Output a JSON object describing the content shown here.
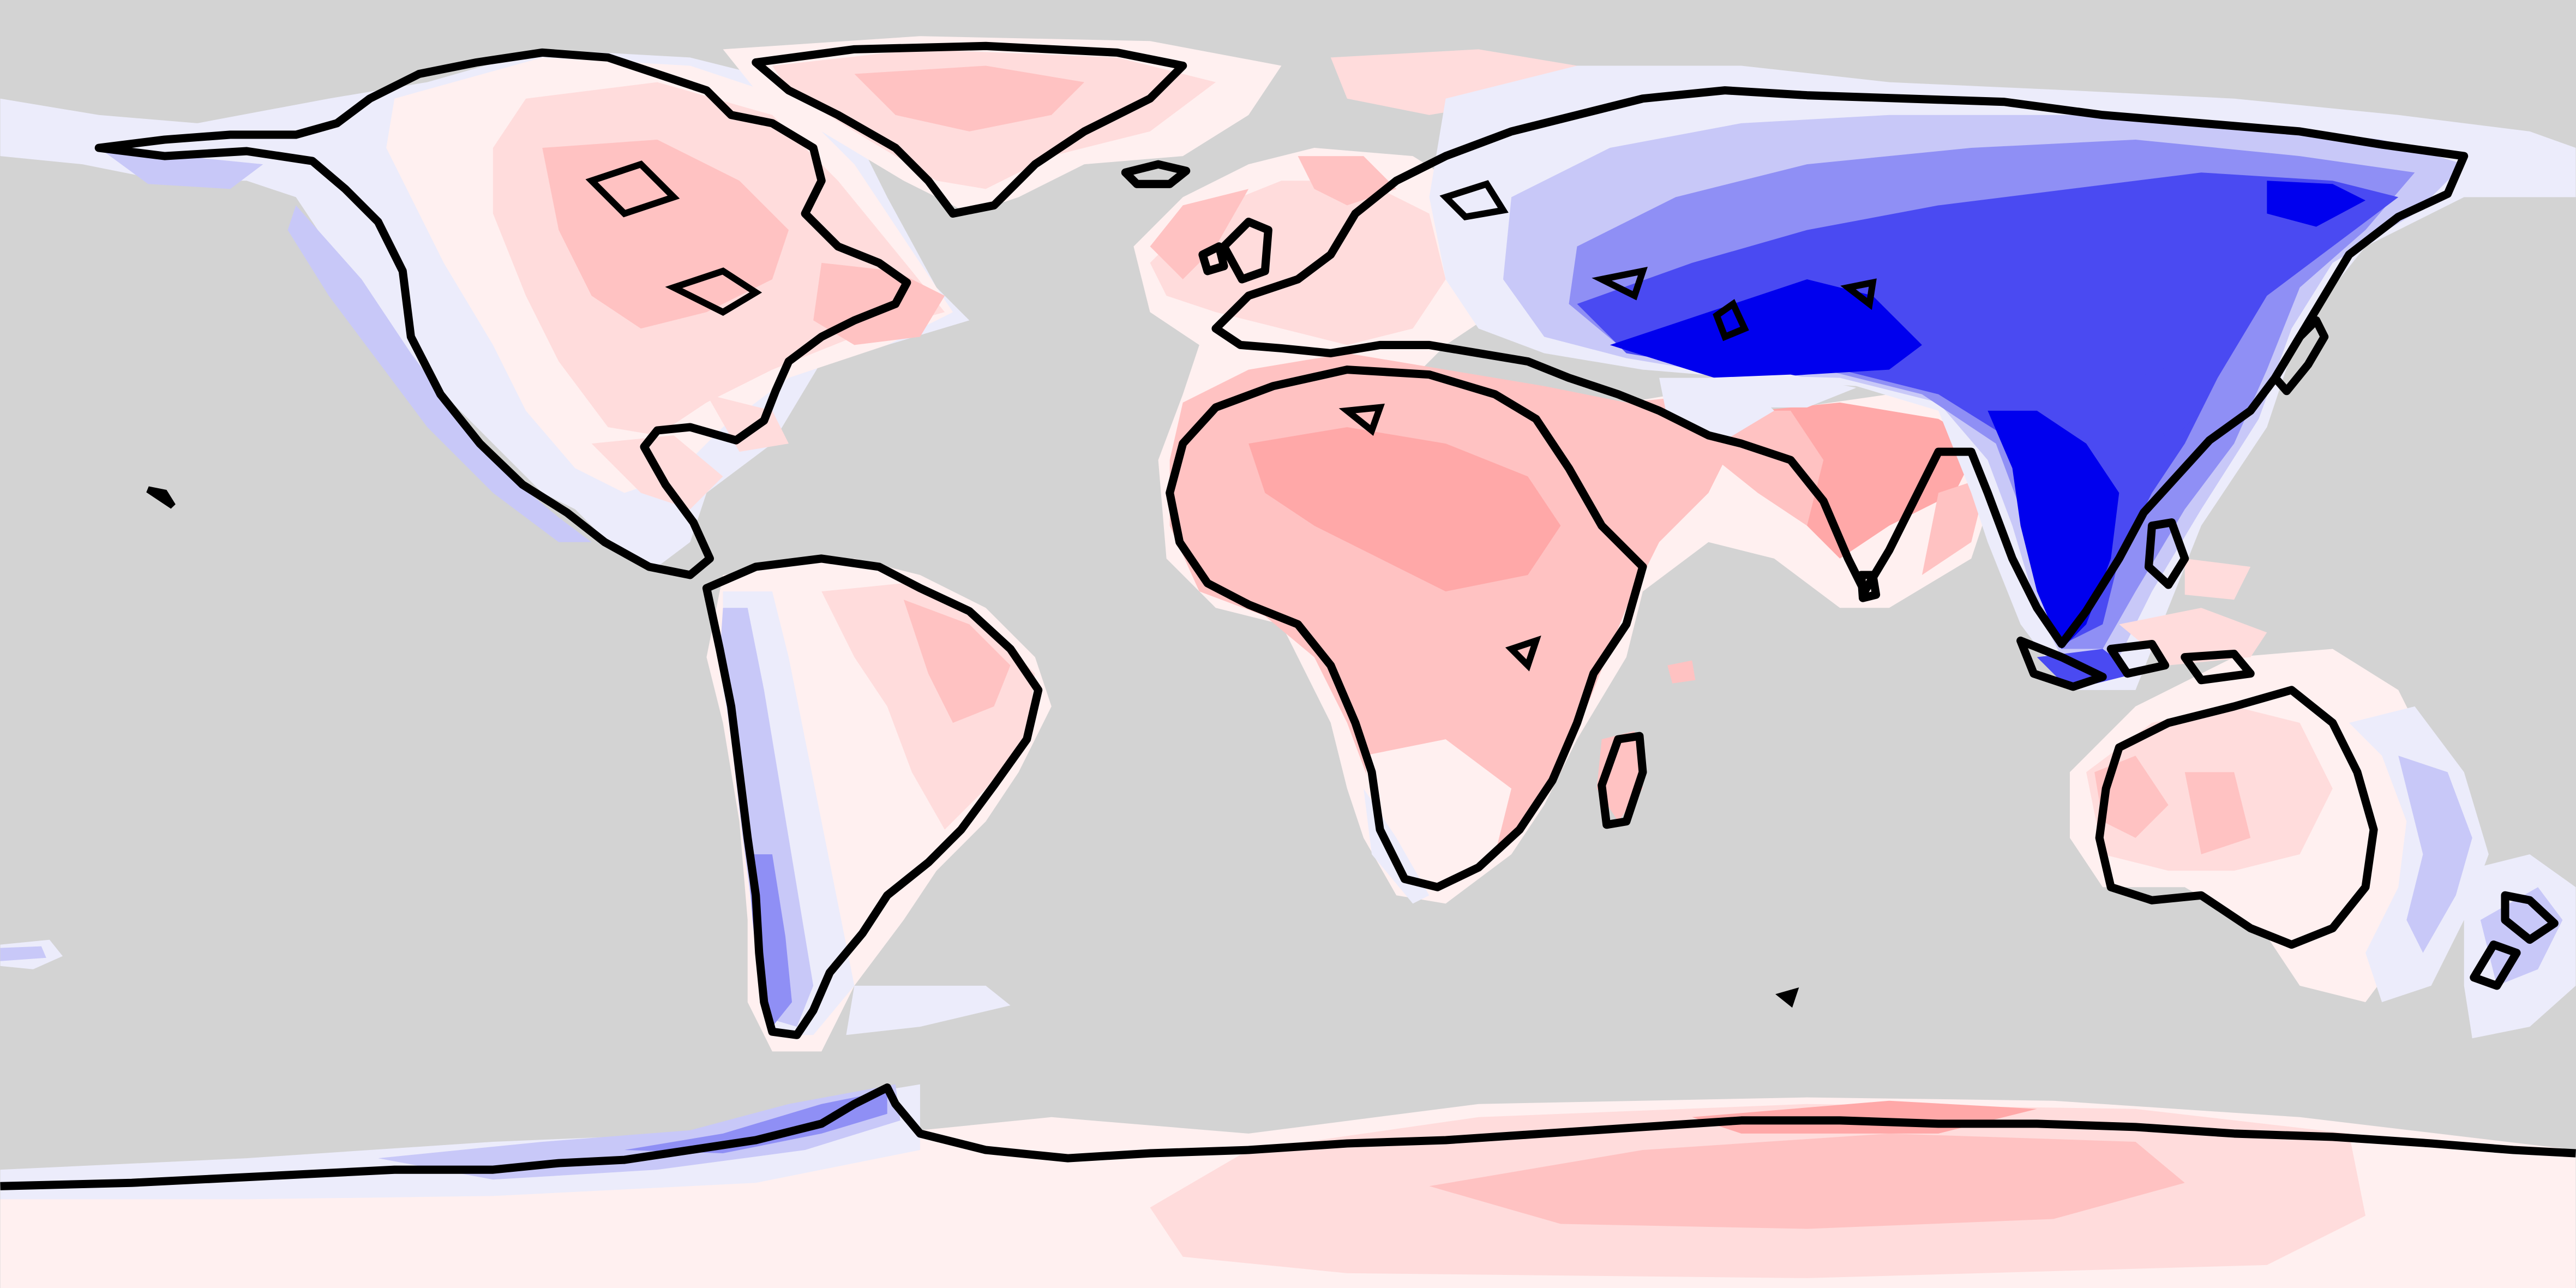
{
  "map": {
    "projection": "equirectangular",
    "ocean_color": "#d3d3d3",
    "coastline_color": "#000000",
    "diverging_scale": {
      "strong_negative": "#0000ee",
      "negative": "#4a4af2",
      "moderate_negative": "#8f8ff5",
      "weak_negative": "#c8c8f8",
      "faint_negative": "#ececfb",
      "neutral": "#ffffff",
      "faint_positive": "#fff0f0",
      "weak_positive": "#ffdcdc",
      "positive": "#ffc2c2",
      "strong_positive": "#ffa8a8"
    }
  }
}
